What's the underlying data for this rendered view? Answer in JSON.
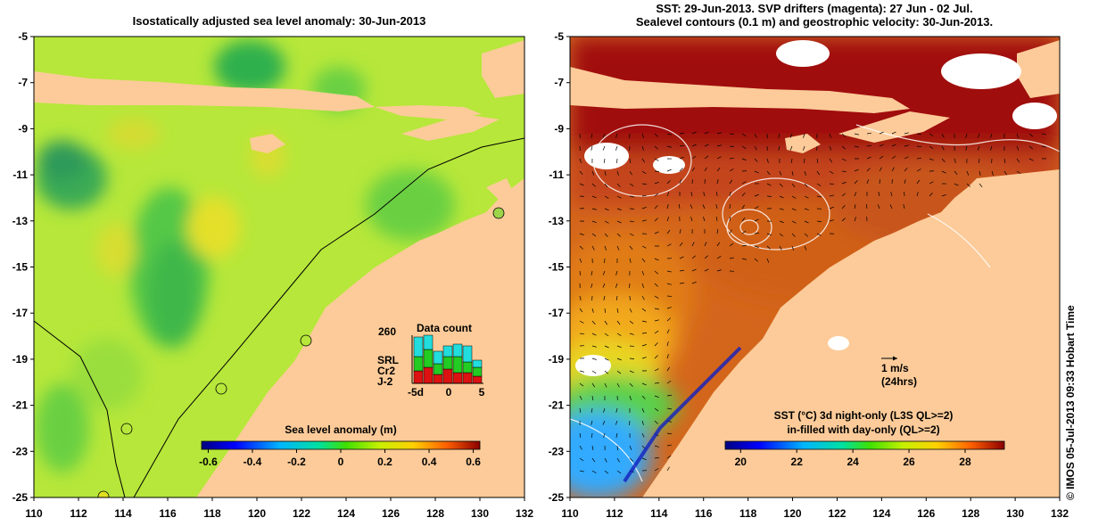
{
  "left_panel": {
    "title": "Isostatically adjusted sea level anomaly: 30-Jun-2013",
    "colorbar": {
      "label": "Sea level anomaly (m)",
      "ticks": [
        "-0.6",
        "-0.4",
        "-0.2",
        "0",
        "0.2",
        "0.4",
        "0.6"
      ]
    },
    "data_count": {
      "title": "Data count",
      "max_label": "260",
      "x_ticks": [
        "-5d",
        "0",
        "5"
      ],
      "series": [
        {
          "name": "SRL",
          "color": "#22dddd"
        },
        {
          "name": "Cr2",
          "color": "#22cc22"
        },
        {
          "name": "J-2",
          "color": "#dd1111"
        }
      ]
    }
  },
  "right_panel": {
    "title_line1": "SST: 29-Jun-2013. SVP drifters (magenta): 27 Jun - 02 Jul.",
    "title_line2": "Sealevel contours (0.1 m) and geostrophic velocity: 30-Jun-2013.",
    "scale_arrow": {
      "line1": "1 m/s",
      "line2": "(24hrs)"
    },
    "colorbar": {
      "label_line1": "SST (°C)  3d night-only (L3S QL>=2)",
      "label_line2": "in-filled with day-only (QL>=2)",
      "ticks": [
        "20",
        "22",
        "24",
        "26",
        "28"
      ]
    }
  },
  "axes": {
    "lat_ticks": [
      "-5",
      "-7",
      "-9",
      "-11",
      "-13",
      "-15",
      "-17",
      "-19",
      "-21",
      "-23",
      "-25"
    ],
    "lon_ticks": [
      "110",
      "112",
      "114",
      "116",
      "118",
      "120",
      "122",
      "124",
      "126",
      "128",
      "130",
      "132"
    ]
  },
  "credit": "© IMOS 05-Jul-2013 09:33 Hobart Time",
  "chart_data": [
    {
      "type": "heatmap",
      "title": "Isostatically adjusted sea level anomaly: 30-Jun-2013",
      "variable": "Sea level anomaly (m)",
      "x_range_deg_e": [
        110,
        132
      ],
      "y_range_deg": [
        -25,
        -5
      ],
      "color_range": [
        -0.6,
        0.6
      ]
    },
    {
      "type": "heatmap",
      "title": "SST: 29-Jun-2013. SVP drifters (magenta): 27 Jun - 02 Jul.",
      "variable": "SST (°C)",
      "x_range_deg_e": [
        110,
        132
      ],
      "y_range_deg": [
        -25,
        -5
      ],
      "color_range": [
        20,
        29.5
      ],
      "contour_interval_m": 0.1
    }
  ]
}
